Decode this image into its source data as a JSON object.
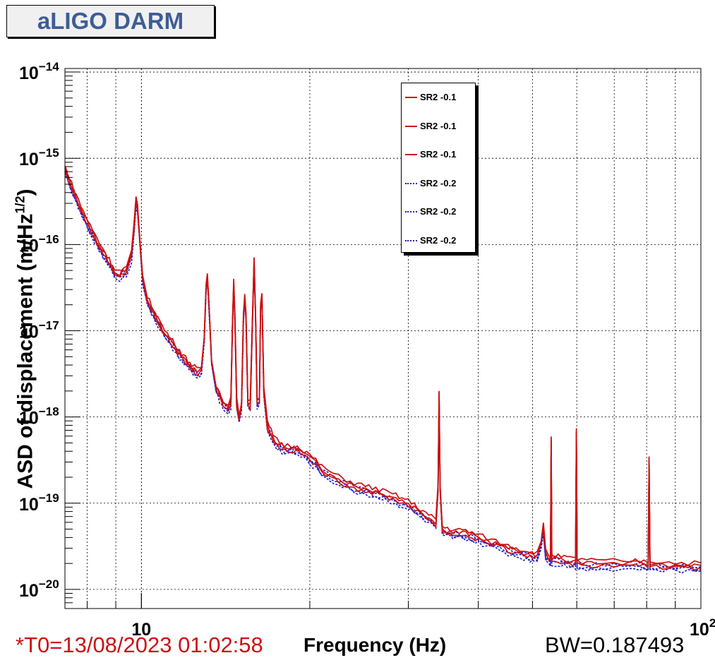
{
  "title": "aLIGO DARM",
  "timestamp": "*T0=13/08/2023 01:02:58",
  "bandwidth": "BW=0.187493",
  "chart_data": {
    "type": "line",
    "title": "aLIGO DARM",
    "xlabel": "Frequency (Hz)",
    "ylabel_main": "ASD of displacement (m/Hz",
    "ylabel_sup": "1/2",
    "ylabel_close": ")",
    "x_scale": "log",
    "y_scale": "log",
    "xlim": [
      7.3,
      100
    ],
    "ylim": [
      6e-21,
      1.1e-14
    ],
    "grid": true,
    "legend_position": "top-right",
    "x_ticks": [
      {
        "value": 10,
        "label": "10",
        "sup": ""
      },
      {
        "value": 100,
        "label": "10",
        "sup": "2"
      }
    ],
    "y_ticks": [
      {
        "value": 1e-14,
        "label": "10",
        "sup": "−14"
      },
      {
        "value": 1e-15,
        "label": "10",
        "sup": "−15"
      },
      {
        "value": 1e-16,
        "label": "10",
        "sup": "−16"
      },
      {
        "value": 1e-17,
        "label": "10",
        "sup": "−17"
      },
      {
        "value": 1e-18,
        "label": "10",
        "sup": "−18"
      },
      {
        "value": 1e-19,
        "label": "10",
        "sup": "−19"
      },
      {
        "value": 1e-20,
        "label": "10",
        "sup": "−20"
      }
    ],
    "base_curve": [
      [
        7.3,
        7.5e-16
      ],
      [
        7.5,
        4.8e-16
      ],
      [
        7.8,
        2.6e-16
      ],
      [
        8.1,
        1.55e-16
      ],
      [
        8.4,
        1e-16
      ],
      [
        8.7,
        6.8e-17
      ],
      [
        8.95,
        5e-17
      ],
      [
        9.15,
        4.6e-17
      ],
      [
        9.4,
        5e-17
      ],
      [
        9.6,
        7.5e-17
      ],
      [
        9.7,
        1.6e-16
      ],
      [
        9.78,
        3.3e-16
      ],
      [
        9.84,
        2.8e-16
      ],
      [
        9.92,
        1.3e-16
      ],
      [
        10.05,
        4e-17
      ],
      [
        10.25,
        2.3e-17
      ],
      [
        10.6,
        1.5e-17
      ],
      [
        11.0,
        9.5e-18
      ],
      [
        11.5,
        6.5e-18
      ],
      [
        11.9,
        4.8e-18
      ],
      [
        12.3,
        3.8e-18
      ],
      [
        12.6,
        3.3e-18
      ],
      [
        12.8,
        3.5e-18
      ],
      [
        12.95,
        8e-18
      ],
      [
        13.05,
        3.2e-17
      ],
      [
        13.12,
        4.4e-17
      ],
      [
        13.2,
        2.2e-17
      ],
      [
        13.35,
        4.5e-18
      ],
      [
        13.6,
        2.2e-18
      ],
      [
        14.0,
        1.45e-18
      ],
      [
        14.3,
        1.25e-18
      ],
      [
        14.45,
        1.5e-18
      ],
      [
        14.55,
        1.3e-17
      ],
      [
        14.62,
        3.6e-17
      ],
      [
        14.7,
        1.3e-17
      ],
      [
        14.8,
        1.5e-18
      ],
      [
        14.95,
        1e-18
      ],
      [
        15.1,
        1.4e-18
      ],
      [
        15.22,
        1.5e-17
      ],
      [
        15.3,
        2.5e-17
      ],
      [
        15.38,
        1.5e-17
      ],
      [
        15.5,
        1.5e-18
      ],
      [
        15.65,
        1.4e-18
      ],
      [
        15.8,
        1.5e-17
      ],
      [
        15.9,
        6.8e-17
      ],
      [
        16.0,
        1.5e-17
      ],
      [
        16.1,
        1.5e-18
      ],
      [
        16.25,
        1.6e-18
      ],
      [
        16.33,
        2e-17
      ],
      [
        16.42,
        2.6e-17
      ],
      [
        16.55,
        2e-18
      ],
      [
        16.8,
        8e-19
      ],
      [
        17.3,
        5.3e-19
      ],
      [
        18.0,
        4.4e-19
      ],
      [
        19.0,
        4.3e-19
      ],
      [
        20.0,
        3.4e-19
      ],
      [
        21.0,
        2.5e-19
      ],
      [
        22.5,
        1.9e-19
      ],
      [
        24.0,
        1.6e-19
      ],
      [
        25.5,
        1.45e-19
      ],
      [
        27.0,
        1.3e-19
      ],
      [
        28.5,
        1.15e-19
      ],
      [
        30.0,
        1e-19
      ],
      [
        31.5,
        8e-20
      ],
      [
        33.0,
        6.5e-20
      ],
      [
        33.6,
        6e-20
      ],
      [
        33.9,
        1.5e-19
      ],
      [
        34.05,
        1.9e-18
      ],
      [
        34.2,
        1.5e-19
      ],
      [
        34.5,
        5e-20
      ],
      [
        36.0,
        4.6e-20
      ],
      [
        38.0,
        4.5e-20
      ],
      [
        40.0,
        4e-20
      ],
      [
        43.0,
        3.4e-20
      ],
      [
        46.0,
        2.9e-20
      ],
      [
        49.0,
        2.6e-20
      ],
      [
        51.0,
        2.5e-20
      ],
      [
        51.8,
        3.6e-20
      ],
      [
        52.3,
        5.3e-20
      ],
      [
        52.8,
        2.6e-20
      ],
      [
        53.5,
        2.3e-20
      ],
      [
        53.85,
        2.3e-20
      ],
      [
        54.0,
        5.8e-19
      ],
      [
        54.15,
        2.3e-20
      ],
      [
        57.0,
        2.2e-20
      ],
      [
        59.7,
        2.1e-20
      ],
      [
        59.9,
        7e-19
      ],
      [
        60.1,
        2.1e-20
      ],
      [
        65.0,
        2e-20
      ],
      [
        75.0,
        2e-20
      ],
      [
        80.5,
        2e-20
      ],
      [
        80.8,
        3.3e-19
      ],
      [
        81.1,
        2e-20
      ],
      [
        90.0,
        1.9e-20
      ],
      [
        100.0,
        1.9e-20
      ]
    ],
    "series": [
      {
        "name": "SR2 -0.1",
        "color": "#cc1111",
        "style": "solid",
        "scale": 1.0
      },
      {
        "name": "SR2 -0.1",
        "color": "#cc1111",
        "style": "solid",
        "scale": 1.07
      },
      {
        "name": "SR2 -0.1",
        "color": "#cc1111",
        "style": "solid",
        "scale": 0.94
      },
      {
        "name": "SR2 -0.2",
        "color": "#1a1acc",
        "style": "dotted",
        "scale": 0.9
      },
      {
        "name": "SR2 -0.2",
        "color": "#1a1acc",
        "style": "dotted",
        "scale": 0.96
      },
      {
        "name": "SR2 -0.2",
        "color": "#1a1acc",
        "style": "dotted",
        "scale": 0.86
      }
    ]
  }
}
